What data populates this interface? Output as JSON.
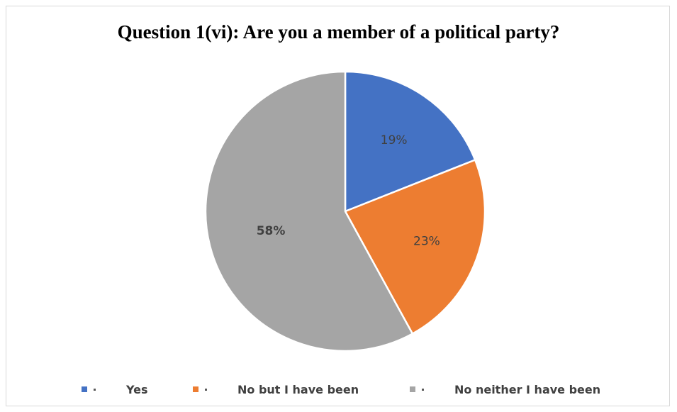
{
  "chart_data": {
    "type": "pie",
    "title": "Question 1(vi): Are you a member of a political party?",
    "categories": [
      "Yes",
      "No but I have been",
      "No neither I have been"
    ],
    "values": [
      19,
      23,
      58
    ],
    "labels": [
      "19%",
      "23%",
      "58%"
    ],
    "colors": [
      "#4472c4",
      "#ed7d31",
      "#a5a5a5"
    ],
    "legend": "bottom",
    "start_angle_deg": 0,
    "direction": "clockwise"
  }
}
